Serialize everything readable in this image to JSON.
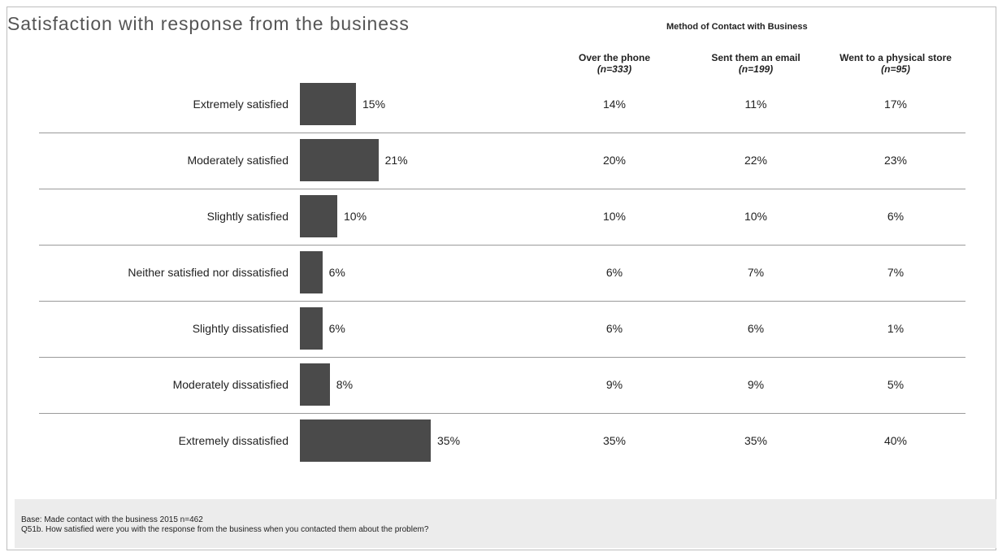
{
  "title": "Satisfaction with response from the business",
  "method_title": "Method of Contact with Business",
  "columns": [
    {
      "label": "Over the phone",
      "n": "(n=333)"
    },
    {
      "label": "Sent them an email",
      "n": "(n=199)"
    },
    {
      "label": "Went to a physical store",
      "n": "(n=95)"
    }
  ],
  "footer": {
    "base": "Base: Made contact with the business 2015 n=462",
    "question": "Q51b.   How satisfied were you with the response from the business when you contacted them about the problem?"
  },
  "colors": {
    "bar": "#4a4a4a",
    "footer_bg": "#ececec"
  },
  "chart_data": {
    "type": "bar",
    "orientation": "horizontal",
    "title": "Satisfaction with response from the business",
    "categories": [
      "Extremely satisfied",
      "Moderately satisfied",
      "Slightly satisfied",
      "Neither satisfied nor dissatisfied",
      "Slightly dissatisfied",
      "Moderately dissatisfied",
      "Extremely dissatisfied"
    ],
    "values": [
      15,
      21,
      10,
      6,
      6,
      8,
      35
    ],
    "value_labels": [
      "15%",
      "21%",
      "10%",
      "6%",
      "6%",
      "8%",
      "35%"
    ],
    "table": {
      "headers": [
        "Over the phone",
        "Sent them an email",
        "Went to a physical store"
      ],
      "rows": [
        [
          "14%",
          "11%",
          "17%"
        ],
        [
          "20%",
          "22%",
          "23%"
        ],
        [
          "10%",
          "10%",
          "6%"
        ],
        [
          "6%",
          "7%",
          "7%"
        ],
        [
          "6%",
          "6%",
          "1%"
        ],
        [
          "9%",
          "9%",
          "5%"
        ],
        [
          "35%",
          "35%",
          "40%"
        ]
      ]
    }
  }
}
